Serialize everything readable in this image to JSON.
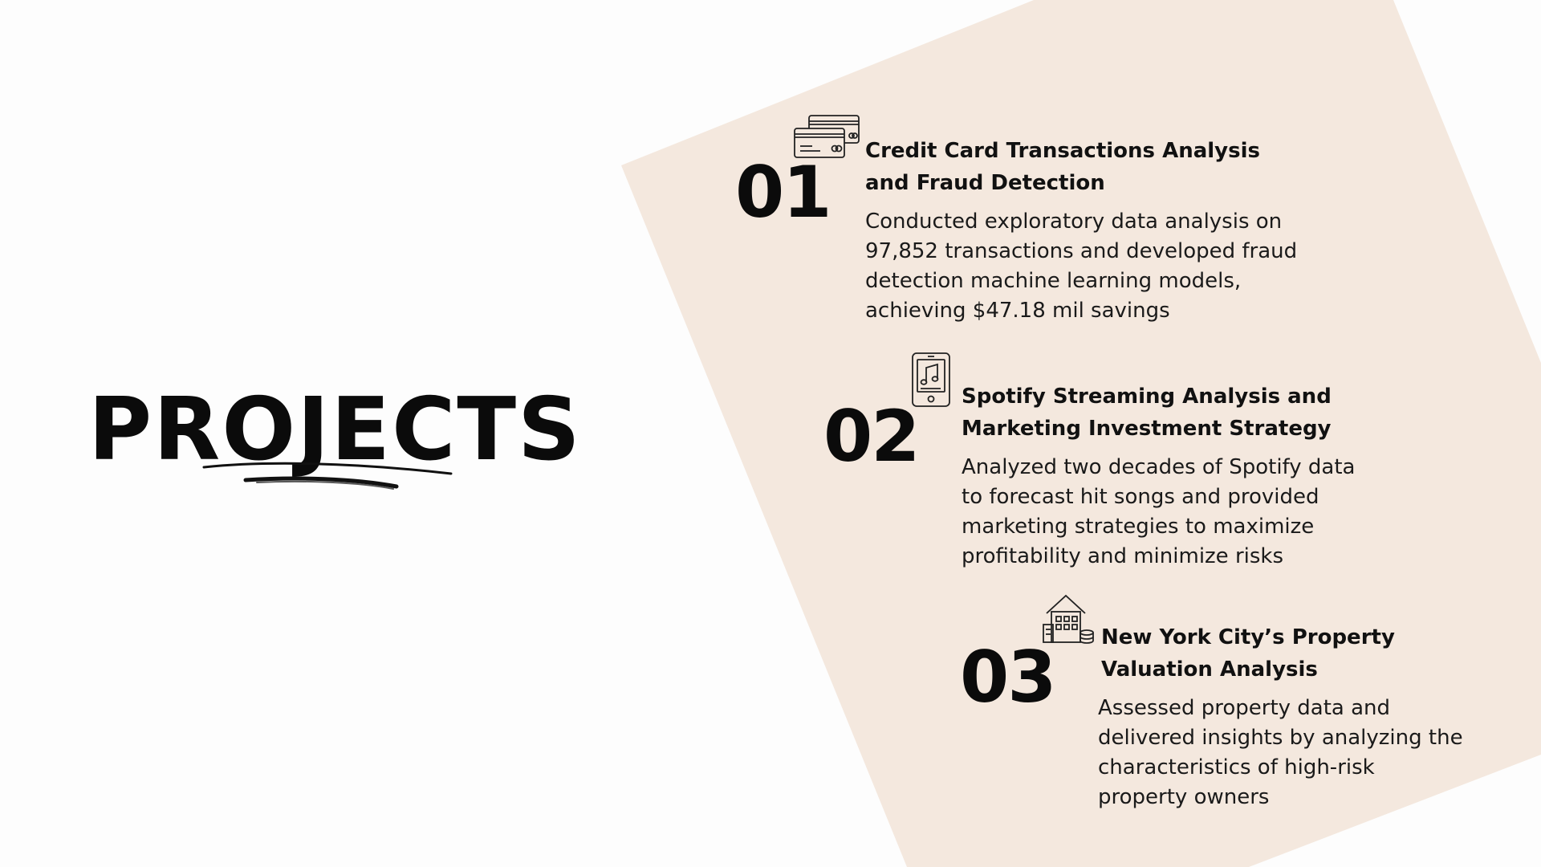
{
  "colors": {
    "background": "#fdfdfd",
    "accent_panel": "#f4e8de",
    "text": "#111111"
  },
  "heading": "PROJECTS",
  "projects": [
    {
      "number": "01",
      "icon": "credit-cards-icon",
      "title_lines": [
        "Credit Card Transactions Analysis",
        "and Fraud Detection"
      ],
      "description_lines": [
        "Conducted exploratory data analysis on",
        "97,852 transactions and developed fraud",
        "detection machine learning models,",
        "achieving $47.18 mil savings"
      ]
    },
    {
      "number": "02",
      "icon": "music-tablet-icon",
      "title_lines": [
        "Spotify Streaming Analysis and",
        "Marketing Investment Strategy"
      ],
      "description_lines": [
        "Analyzed two decades of Spotify data",
        "to forecast hit songs and provided",
        "marketing strategies to maximize",
        "profitability and minimize risks"
      ]
    },
    {
      "number": "03",
      "icon": "property-building-icon",
      "title_lines": [
        "New York City’s Property",
        "Valuation Analysis"
      ],
      "description_lines": [
        "Assessed property data and",
        "delivered insights by analyzing the",
        "characteristics of high-risk",
        "property owners"
      ]
    }
  ]
}
